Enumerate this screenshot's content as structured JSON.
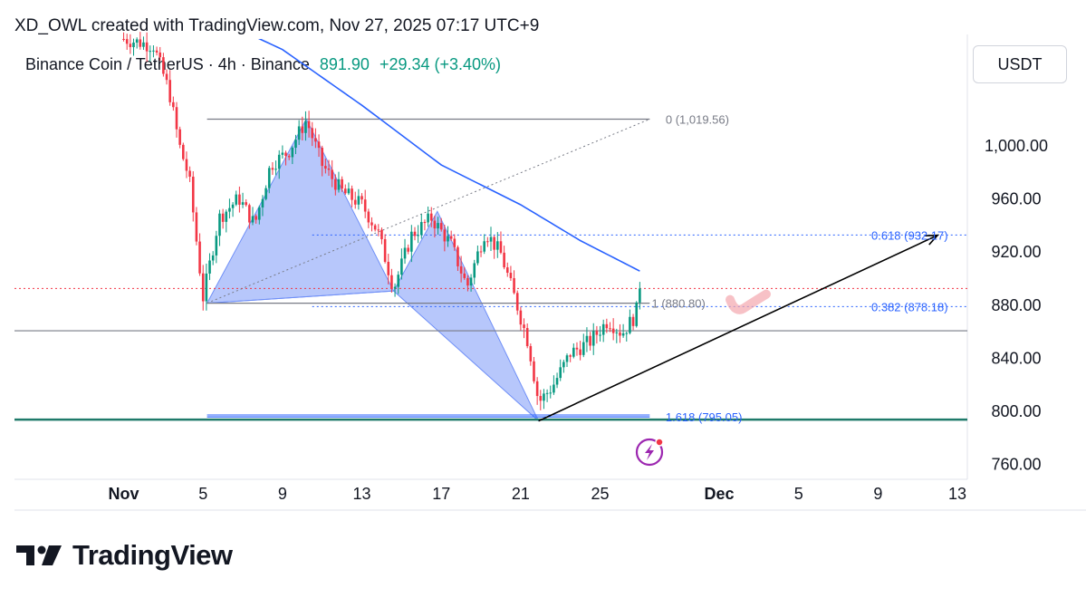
{
  "header": {
    "caption": "XD_OWL created with TradingView.com, Nov 27, 2025 07:17 UTC+9"
  },
  "symbol": {
    "name": "Binance Coin / TetherUS · 4h · Binance",
    "price": "891.90",
    "change": "+29.34 (+3.40%)"
  },
  "currency": "USDT",
  "brand": {
    "name": "TradingView"
  },
  "colors": {
    "up": "#089981",
    "down": "#f23645",
    "ma": "#2962ff",
    "pattern": "#6f8ff7",
    "fib": "#2962ff",
    "price_line": "#f23645",
    "support": "#1f7a6a"
  },
  "chart_data": {
    "type": "candlestick",
    "interval": "4h",
    "y_ticks": [
      "760.00",
      "800.00",
      "840.00",
      "880.00",
      "920.00",
      "960.00",
      "1,000.00"
    ],
    "y_tick_values": [
      760,
      800,
      840,
      880,
      920,
      960,
      1000
    ],
    "ylim": [
      748,
      1080
    ],
    "x_ticks": [
      {
        "label": "Nov",
        "day": 1
      },
      {
        "label": "5",
        "day": 5
      },
      {
        "label": "9",
        "day": 9
      },
      {
        "label": "13",
        "day": 13
      },
      {
        "label": "17",
        "day": 17
      },
      {
        "label": "21",
        "day": 21
      },
      {
        "label": "25",
        "day": 25
      },
      {
        "label": "Dec",
        "day": 31
      },
      {
        "label": "5",
        "day": 35
      },
      {
        "label": "9",
        "day": 39
      },
      {
        "label": "13",
        "day": 43
      }
    ],
    "xlim": [
      -4.5,
      43.5
    ],
    "anchors": [
      {
        "day": 1.0,
        "price": 1080
      },
      {
        "day": 2.5,
        "price": 1075
      },
      {
        "day": 3.3,
        "price": 1040
      },
      {
        "day": 3.8,
        "price": 1000
      },
      {
        "day": 4.3,
        "price": 975
      },
      {
        "day": 5.0,
        "price": 885
      },
      {
        "day": 5.8,
        "price": 945
      },
      {
        "day": 6.8,
        "price": 960
      },
      {
        "day": 7.6,
        "price": 940
      },
      {
        "day": 8.4,
        "price": 985
      },
      {
        "day": 9.3,
        "price": 995
      },
      {
        "day": 10.2,
        "price": 1019
      },
      {
        "day": 11.0,
        "price": 985
      },
      {
        "day": 12.0,
        "price": 965
      },
      {
        "day": 13.0,
        "price": 955
      },
      {
        "day": 13.8,
        "price": 935
      },
      {
        "day": 14.6,
        "price": 892
      },
      {
        "day": 15.5,
        "price": 932
      },
      {
        "day": 16.5,
        "price": 945
      },
      {
        "day": 17.5,
        "price": 925
      },
      {
        "day": 18.3,
        "price": 893
      },
      {
        "day": 19.2,
        "price": 935
      },
      {
        "day": 20.0,
        "price": 918
      },
      {
        "day": 20.8,
        "price": 880
      },
      {
        "day": 21.4,
        "price": 850
      },
      {
        "day": 21.9,
        "price": 806
      },
      {
        "day": 22.6,
        "price": 818
      },
      {
        "day": 23.5,
        "price": 843
      },
      {
        "day": 24.5,
        "price": 852
      },
      {
        "day": 25.4,
        "price": 868
      },
      {
        "day": 26.1,
        "price": 858
      },
      {
        "day": 26.8,
        "price": 872
      },
      {
        "day": 27.0,
        "price": 892
      }
    ],
    "moving_average": [
      {
        "day": 5.0,
        "price": 1100
      },
      {
        "day": 9.0,
        "price": 1072
      },
      {
        "day": 13.0,
        "price": 1030
      },
      {
        "day": 17.0,
        "price": 985
      },
      {
        "day": 21.0,
        "price": 955
      },
      {
        "day": 24.0,
        "price": 928
      },
      {
        "day": 27.0,
        "price": 905
      }
    ],
    "pattern": {
      "X": {
        "day": 5.2,
        "price": 880.8
      },
      "A": {
        "day": 10.2,
        "price": 1019.56
      },
      "B": {
        "day": 14.6,
        "price": 890
      },
      "C": {
        "day": 16.8,
        "price": 950
      },
      "D": {
        "day": 21.9,
        "price": 792
      }
    },
    "levels": {
      "current_price": 891.9,
      "support_line": 793,
      "gray_line": 860
    },
    "fib_gray": [
      {
        "label": "0 (1,019.56)",
        "price": 1019.56
      },
      {
        "label": "1 (880.80)",
        "price": 880.8
      },
      {
        "label": "1.618 (795.05)",
        "price": 795.05
      }
    ],
    "fib_blue": [
      {
        "label": "0.618 (932.17)",
        "price": 932.17
      },
      {
        "label": "0.382 (878.18)",
        "price": 878.18
      }
    ],
    "arrow": {
      "from": {
        "day": 21.9,
        "price": 792
      },
      "to": {
        "day": 42.0,
        "price": 932
      }
    }
  }
}
